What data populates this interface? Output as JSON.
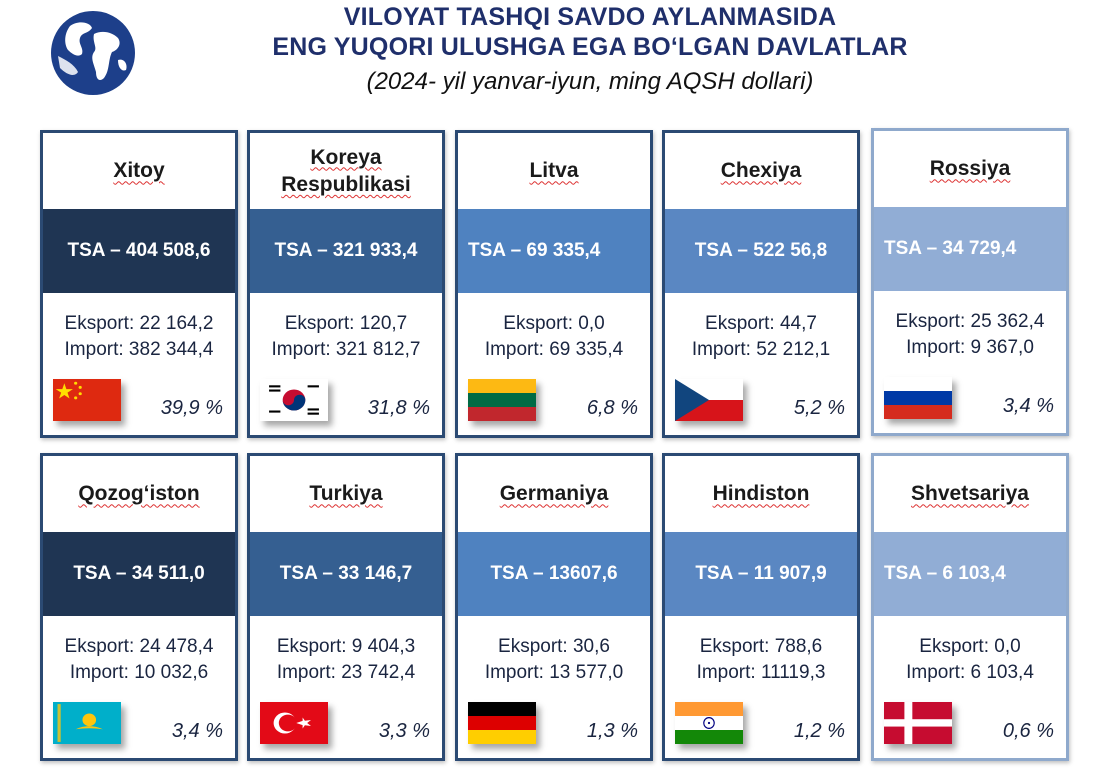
{
  "header": {
    "title_line1": "VILOYAT TASHQI SAVDO AYLANMASIDA",
    "title_line2": "ENG YUQORI ULUSHGA EGA BO‘LGAN DAVLATLAR",
    "subtitle": "(2024- yil yanvar-iyun, ming AQSH dollari)"
  },
  "countries": [
    {
      "name": "Xitoy",
      "tsa": "TSA – 404 508,6",
      "export": "Eksport: 22 164,2",
      "import": "Import: 382 344,4",
      "share": "39,9 %",
      "flag_icon": "china-flag-icon"
    },
    {
      "name": "Koreya Respublikasi",
      "tsa": "TSA – 321 933,4",
      "export": "Eksport: 120,7",
      "import": "Import: 321 812,7",
      "share": "31,8 %",
      "flag_icon": "south-korea-flag-icon"
    },
    {
      "name": "Litva",
      "tsa": "TSA – 69 335,4",
      "export": "Eksport: 0,0",
      "import": "Import: 69 335,4",
      "share": "6,8 %",
      "flag_icon": "lithuania-flag-icon"
    },
    {
      "name": "Chexiya",
      "tsa": "TSA – 522 56,8",
      "export": "Eksport: 44,7",
      "import": "Import: 52 212,1",
      "share": "5,2 %",
      "flag_icon": "czech-flag-icon"
    },
    {
      "name": "Rossiya",
      "tsa": "TSA – 34 729,4",
      "export": "Eksport: 25 362,4",
      "import": "Import: 9 367,0",
      "share": "3,4 %",
      "flag_icon": "russia-flag-icon"
    },
    {
      "name": "Qozog‘iston",
      "tsa": "TSA – 34 511,0",
      "export": "Eksport: 24 478,4",
      "import": "Import: 10 032,6",
      "share": "3,4 %",
      "flag_icon": "kazakhstan-flag-icon"
    },
    {
      "name": "Turkiya",
      "tsa": "TSA – 33 146,7",
      "export": "Eksport: 9 404,3",
      "import": "Import: 23 742,4",
      "share": "3,3 %",
      "flag_icon": "turkey-flag-icon"
    },
    {
      "name": "Germaniya",
      "tsa": "TSA – 13607,6",
      "export": "Eksport: 30,6",
      "import": "Import: 13 577,0",
      "share": "1,3 %",
      "flag_icon": "germany-flag-icon"
    },
    {
      "name": "Hindiston",
      "tsa": "TSA – 11 907,9",
      "export": "Eksport: 788,6",
      "import": "Import: 11119,3",
      "share": "1,2 %",
      "flag_icon": "india-flag-icon"
    },
    {
      "name": "Shvetsariya",
      "tsa": "TSA – 6 103,4",
      "export": "Eksport: 0,0",
      "import": "Import: 6 103,4",
      "share": "0,6 %",
      "flag_icon": "denmark-flag-icon"
    }
  ],
  "colors": {
    "dark_navy": "#1f3553",
    "mid_blue": "#355f91",
    "blue": "#4f82c0",
    "light_blue": "#91add5",
    "title_blue": "#1f2f6b"
  }
}
